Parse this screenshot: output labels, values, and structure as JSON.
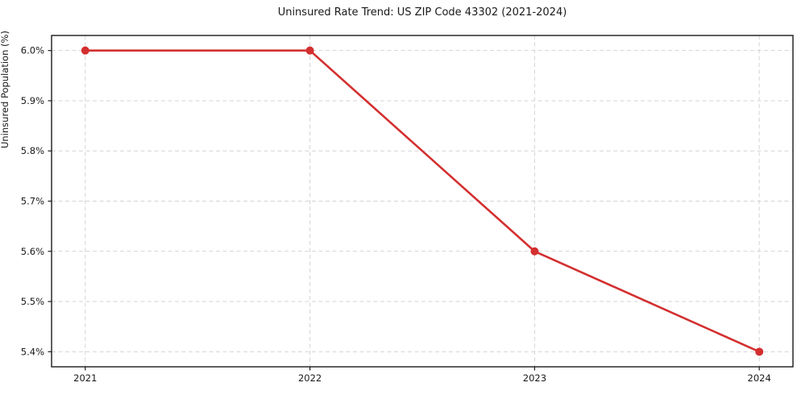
{
  "chart_data": {
    "type": "line",
    "title": "Uninsured Rate Trend: US ZIP Code 43302 (2021-2024)",
    "xlabel": "",
    "ylabel": "Uninsured Population (%)",
    "x": [
      2021,
      2022,
      2023,
      2024
    ],
    "values": [
      6.0,
      6.0,
      5.6,
      5.4
    ],
    "series": [
      {
        "name": "Uninsured rate",
        "values": [
          6.0,
          6.0,
          5.6,
          5.4
        ]
      }
    ],
    "xtick_labels": [
      "2021",
      "2022",
      "2023",
      "2024"
    ],
    "ytick_values": [
      5.4,
      5.5,
      5.6,
      5.7,
      5.8,
      5.9,
      6.0
    ],
    "ytick_labels": [
      "5.4%",
      "5.5%",
      "5.6%",
      "5.7%",
      "5.8%",
      "5.9%",
      "6.0%"
    ],
    "xlim": [
      2020.85,
      2024.15
    ],
    "ylim": [
      5.37,
      6.03
    ],
    "grid": true,
    "legend": "none",
    "colors": {
      "line": "#d32f2f",
      "marker": "#d32f2f",
      "grid": "#d4d4d4",
      "spine": "#1a1a1a",
      "text": "#1a1a1a",
      "background": "#ffffff"
    }
  }
}
